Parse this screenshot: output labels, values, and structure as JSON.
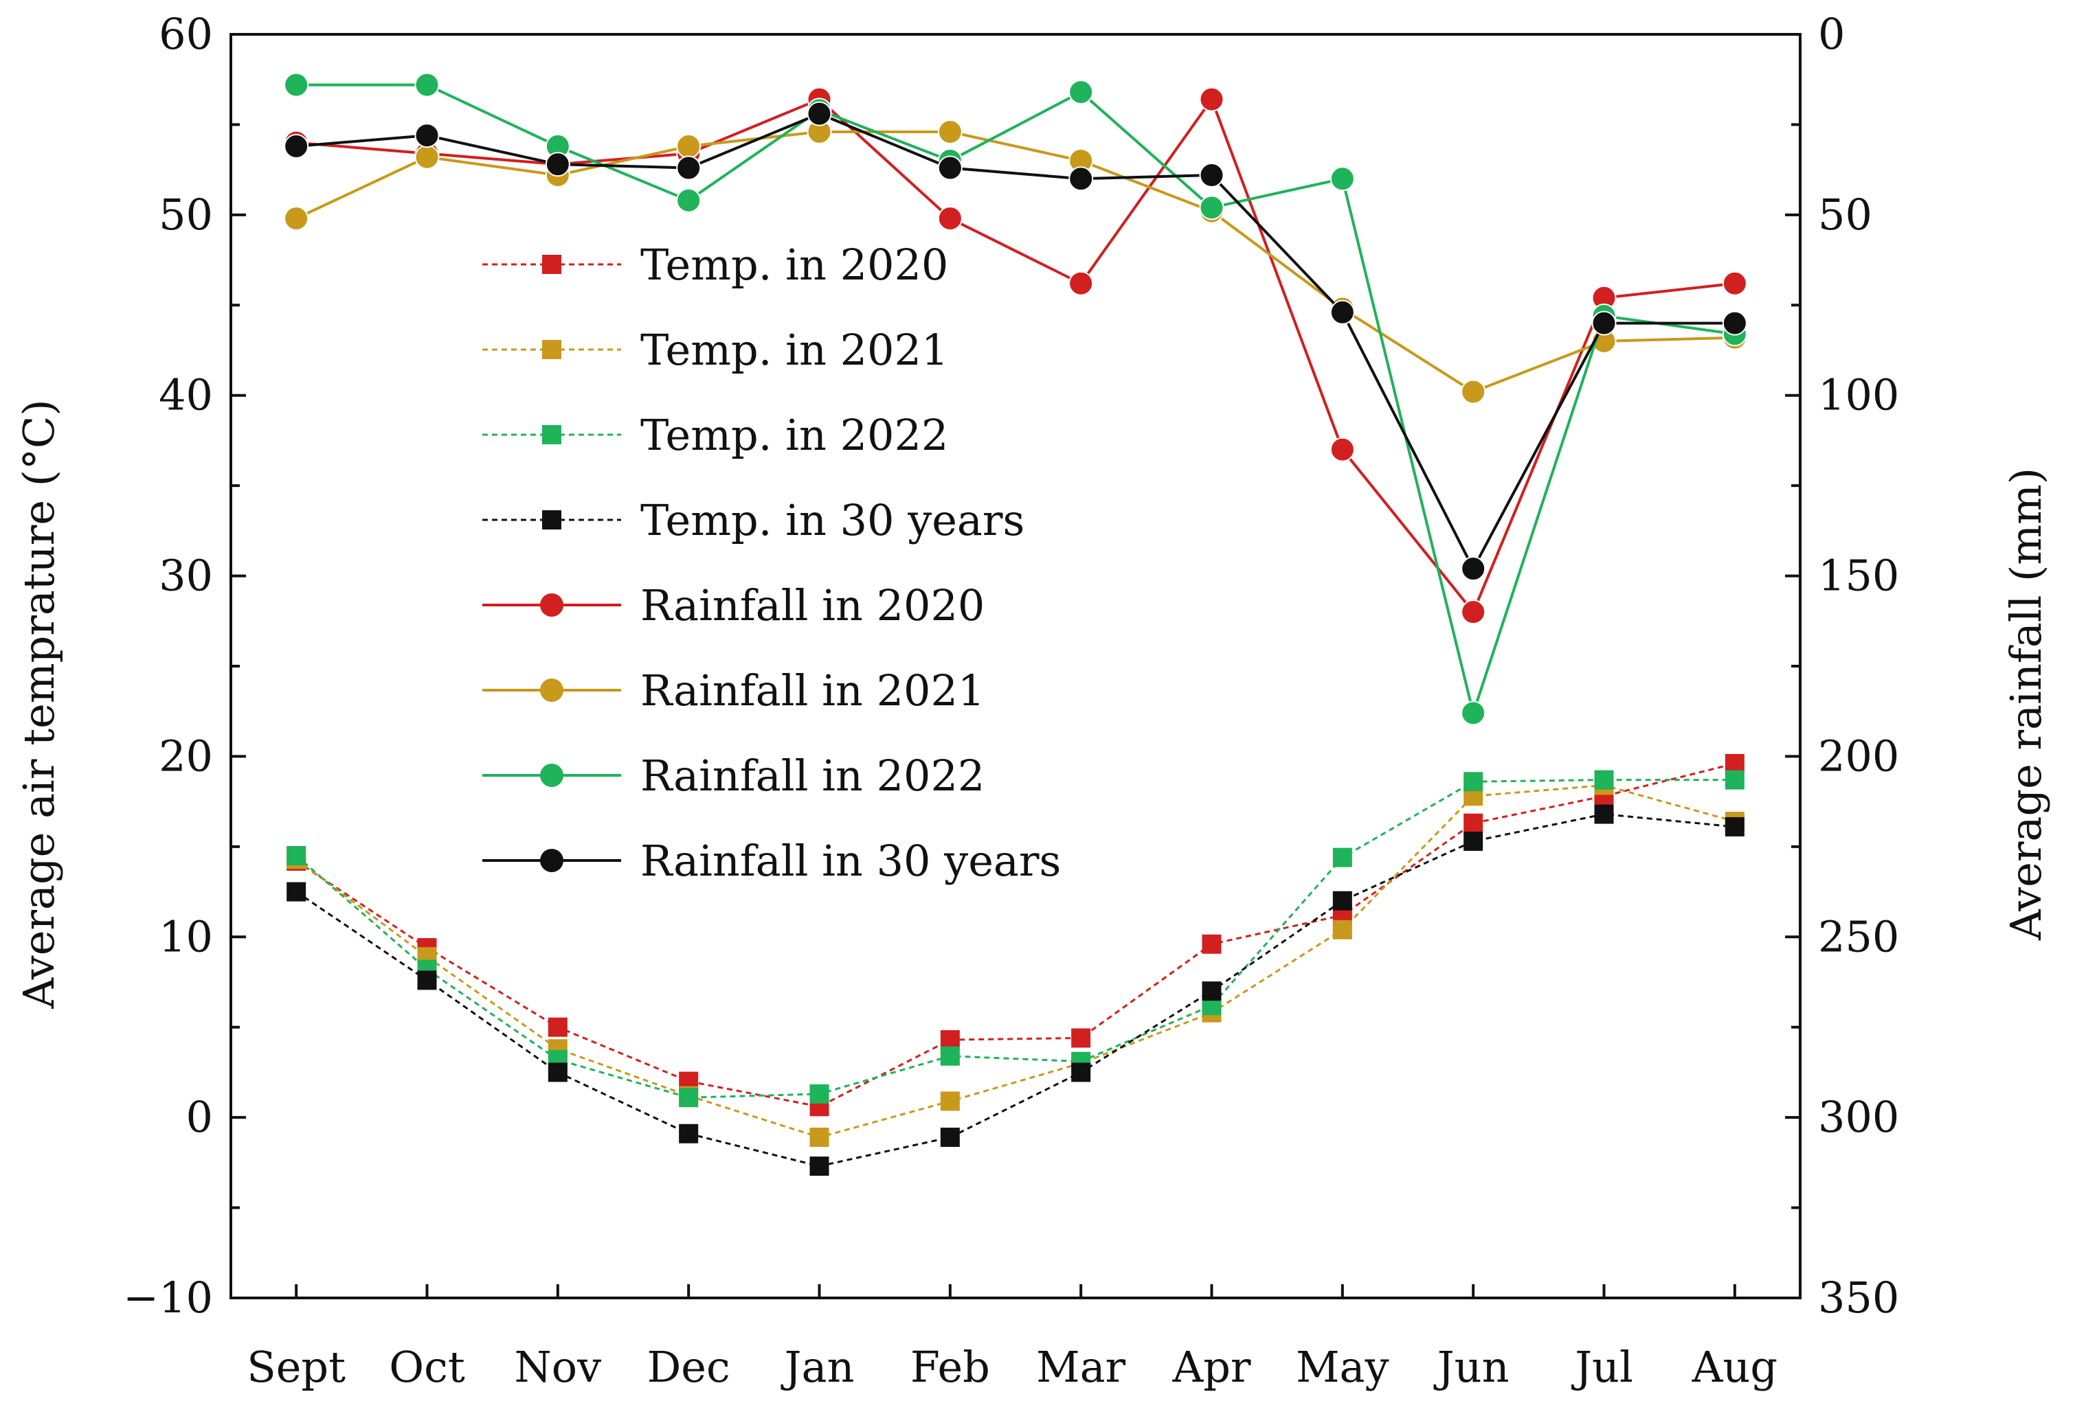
{
  "chart_data": {
    "type": "line",
    "categories": [
      "Sept",
      "Oct",
      "Nov",
      "Dec",
      "Jan",
      "Feb",
      "Mar",
      "Apr",
      "May",
      "Jun",
      "Jul",
      "Aug"
    ],
    "y_left": {
      "label": "Average air temprature (°C)",
      "range": [
        -10,
        60
      ],
      "ticks": [
        "60",
        "50",
        "40",
        "30",
        "20",
        "10",
        "0",
        "−10"
      ]
    },
    "y_right": {
      "label": "Average rainfall (mm)",
      "range": [
        0,
        350
      ],
      "inverted": true,
      "ticks": [
        "0",
        "50",
        "100",
        "150",
        "200",
        "250",
        "300",
        "350"
      ]
    },
    "legend": {
      "position": "upper-center"
    },
    "series": [
      {
        "name": "Temp. in 2020",
        "kind": "temperature",
        "axis": "left",
        "color": "#d21f1f",
        "marker": "square",
        "dashed": true,
        "values": [
          14.2,
          9.4,
          5.0,
          2.0,
          0.6,
          4.3,
          4.4,
          9.6,
          11.2,
          16.3,
          17.8,
          19.6
        ]
      },
      {
        "name": "Temp. in 2021",
        "kind": "temperature",
        "axis": "left",
        "color": "#c8991a",
        "marker": "square",
        "dashed": true,
        "values": [
          14.3,
          8.9,
          3.8,
          1.2,
          -1.1,
          0.9,
          3.0,
          5.8,
          10.4,
          17.8,
          18.4,
          16.4
        ]
      },
      {
        "name": "Temp. in 2022",
        "kind": "temperature",
        "axis": "left",
        "color": "#1fb35a",
        "marker": "square",
        "dashed": true,
        "values": [
          14.5,
          8.2,
          3.2,
          1.1,
          1.3,
          3.4,
          3.1,
          6.2,
          14.4,
          18.6,
          18.7,
          18.7
        ]
      },
      {
        "name": "Temp. in 30 years",
        "kind": "temperature",
        "axis": "left",
        "color": "#111111",
        "marker": "square",
        "dashed": true,
        "values": [
          12.5,
          7.6,
          2.5,
          -0.9,
          -2.7,
          -1.1,
          2.5,
          7.0,
          12.0,
          15.3,
          16.8,
          16.1
        ]
      },
      {
        "name": "Rainfall in 2020",
        "kind": "rainfall",
        "axis": "right",
        "color": "#d21f1f",
        "marker": "circle",
        "dashed": false,
        "values": [
          30,
          33,
          36,
          33,
          18,
          51,
          69,
          18,
          115,
          160,
          73,
          69
        ]
      },
      {
        "name": "Rainfall in 2021",
        "kind": "rainfall",
        "axis": "right",
        "color": "#c8991a",
        "marker": "circle",
        "dashed": false,
        "values": [
          51,
          34,
          39,
          31,
          27,
          27,
          35,
          49,
          76,
          99,
          85,
          84
        ]
      },
      {
        "name": "Rainfall in 2022",
        "kind": "rainfall",
        "axis": "right",
        "color": "#1fb35a",
        "marker": "circle",
        "dashed": false,
        "values": [
          14,
          14,
          31,
          46,
          21,
          35,
          16,
          48,
          40,
          188,
          78,
          83
        ]
      },
      {
        "name": "Rainfall in 30 years",
        "kind": "rainfall",
        "axis": "right",
        "color": "#111111",
        "marker": "circle",
        "dashed": false,
        "values": [
          31,
          28,
          36,
          37,
          22,
          37,
          40,
          39,
          77,
          148,
          80,
          80
        ]
      }
    ]
  }
}
